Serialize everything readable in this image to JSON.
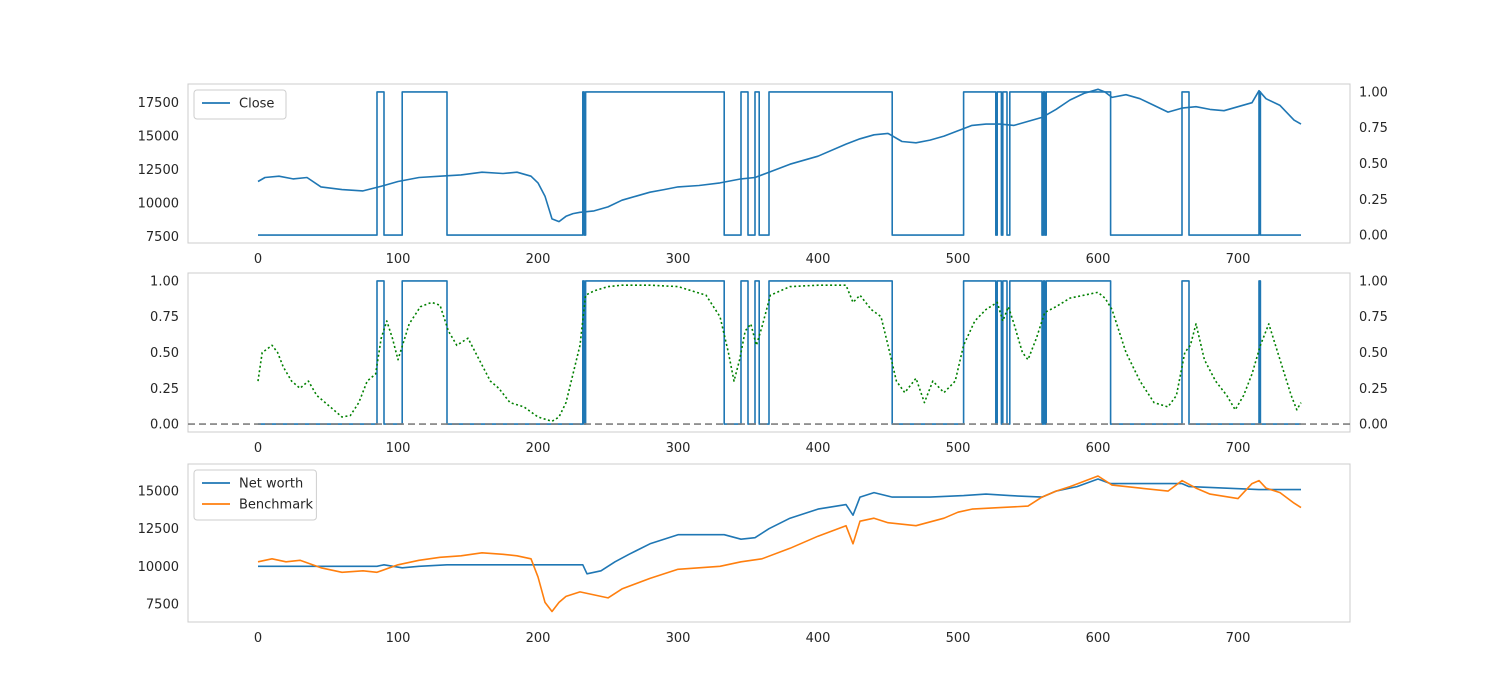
{
  "colors": {
    "close": "#1f77b4",
    "position": "#1f77b4",
    "probability": "#008000",
    "threshold": "#808080",
    "net_worth": "#1f77b4",
    "benchmark": "#ff7f0e"
  },
  "chart_data": [
    {
      "type": "line",
      "panel": "price",
      "legend": {
        "placement": "upper-left",
        "entries": [
          "Close"
        ]
      },
      "grid": false,
      "xlim": [
        -50,
        780
      ],
      "ylim": [
        7000,
        18900
      ],
      "y2lim": [
        -0.055,
        1.055
      ],
      "x_ticks": [
        "0",
        "100",
        "200",
        "300",
        "400",
        "500",
        "600",
        "700"
      ],
      "y_ticks": [
        "7500",
        "10000",
        "12500",
        "15000",
        "17500"
      ],
      "y2_ticks": [
        "0.00",
        "0.25",
        "0.50",
        "0.75",
        "1.00"
      ],
      "series": [
        {
          "name": "Close",
          "axis": "left",
          "color": "#1f77b4",
          "x": [
            0,
            5,
            15,
            25,
            35,
            45,
            60,
            75,
            90,
            100,
            115,
            130,
            145,
            160,
            175,
            185,
            195,
            200,
            205,
            210,
            215,
            220,
            225,
            230,
            240,
            250,
            260,
            270,
            280,
            290,
            300,
            315,
            330,
            345,
            355,
            365,
            380,
            400,
            420,
            430,
            440,
            450,
            460,
            470,
            480,
            490,
            500,
            510,
            520,
            530,
            540,
            550,
            560,
            570,
            580,
            590,
            600,
            605,
            610,
            620,
            630,
            640,
            650,
            660,
            670,
            680,
            690,
            700,
            710,
            715,
            720,
            730,
            740,
            745
          ],
          "y": [
            11600,
            11900,
            12000,
            11800,
            11900,
            11200,
            11000,
            10900,
            11300,
            11600,
            11900,
            12000,
            12100,
            12300,
            12200,
            12300,
            12000,
            11500,
            10500,
            8800,
            8600,
            9000,
            9200,
            9300,
            9400,
            9700,
            10200,
            10500,
            10800,
            11000,
            11200,
            11300,
            11500,
            11800,
            11900,
            12300,
            12900,
            13500,
            14400,
            14800,
            15100,
            15200,
            14600,
            14500,
            14700,
            15000,
            15400,
            15800,
            15900,
            15900,
            15800,
            16100,
            16400,
            17000,
            17700,
            18200,
            18500,
            18300,
            17900,
            18100,
            17800,
            17300,
            16800,
            17100,
            17200,
            17000,
            16900,
            17200,
            17500,
            18400,
            17800,
            17300,
            16200,
            15900
          ]
        },
        {
          "name": "position",
          "axis": "right",
          "color": "#1f77b4",
          "step": true,
          "x": [
            0,
            85,
            90,
            103,
            135,
            232,
            233,
            234,
            333,
            345,
            350,
            355,
            358,
            365,
            453,
            504,
            527,
            528,
            531,
            532,
            535,
            537,
            560,
            561,
            562,
            563,
            609,
            660,
            665,
            715,
            716,
            745
          ],
          "y": [
            0,
            1,
            0,
            1,
            0,
            1,
            0,
            1,
            0,
            1,
            0,
            1,
            0,
            1,
            0,
            1,
            0,
            1,
            0,
            1,
            0,
            1,
            0,
            1,
            0,
            1,
            0,
            1,
            0,
            1,
            0,
            0
          ]
        }
      ]
    },
    {
      "type": "line",
      "panel": "signal",
      "grid": false,
      "xlim": [
        -50,
        780
      ],
      "ylim": [
        -0.055,
        1.055
      ],
      "y2lim": [
        -0.055,
        1.055
      ],
      "x_ticks": [
        "0",
        "100",
        "200",
        "300",
        "400",
        "500",
        "600",
        "700"
      ],
      "y_ticks": [
        "0.00",
        "0.25",
        "0.50",
        "0.75",
        "1.00"
      ],
      "y2_ticks": [
        "0.00",
        "0.25",
        "0.50",
        "0.75",
        "1.00"
      ],
      "series": [
        {
          "name": "position",
          "axis": "left",
          "color": "#1f77b4",
          "step": true,
          "x": [
            0,
            85,
            90,
            103,
            135,
            232,
            233,
            234,
            333,
            345,
            350,
            355,
            358,
            365,
            453,
            504,
            527,
            528,
            531,
            532,
            535,
            537,
            560,
            561,
            562,
            563,
            609,
            660,
            665,
            715,
            716,
            745
          ],
          "y": [
            0,
            1,
            0,
            1,
            0,
            1,
            0,
            1,
            0,
            1,
            0,
            1,
            0,
            1,
            0,
            1,
            0,
            1,
            0,
            1,
            0,
            1,
            0,
            1,
            0,
            1,
            0,
            1,
            0,
            1,
            0,
            0
          ]
        },
        {
          "name": "probability",
          "axis": "right",
          "color": "#008000",
          "dash": "dotted",
          "x": [
            0,
            3,
            6,
            10,
            14,
            18,
            24,
            30,
            36,
            42,
            48,
            54,
            60,
            66,
            72,
            78,
            84,
            88,
            92,
            96,
            100,
            108,
            116,
            124,
            130,
            136,
            142,
            150,
            158,
            166,
            172,
            180,
            190,
            200,
            210,
            215,
            220,
            225,
            230,
            234,
            240,
            250,
            260,
            280,
            300,
            320,
            330,
            336,
            340,
            344,
            348,
            352,
            356,
            360,
            366,
            380,
            400,
            420,
            425,
            430,
            438,
            445,
            450,
            456,
            462,
            470,
            476,
            482,
            490,
            498,
            504,
            512,
            520,
            528,
            532,
            536,
            540,
            546,
            550,
            556,
            562,
            570,
            580,
            590,
            600,
            605,
            610,
            620,
            630,
            640,
            650,
            656,
            662,
            666,
            670,
            676,
            684,
            692,
            698,
            704,
            710,
            716,
            722,
            730,
            738,
            742,
            745
          ],
          "y": [
            0.3,
            0.5,
            0.52,
            0.55,
            0.5,
            0.4,
            0.3,
            0.25,
            0.3,
            0.2,
            0.15,
            0.1,
            0.05,
            0.06,
            0.15,
            0.3,
            0.35,
            0.6,
            0.72,
            0.6,
            0.45,
            0.7,
            0.82,
            0.85,
            0.83,
            0.65,
            0.55,
            0.6,
            0.45,
            0.3,
            0.25,
            0.15,
            0.12,
            0.05,
            0.02,
            0.05,
            0.15,
            0.35,
            0.55,
            0.9,
            0.93,
            0.96,
            0.97,
            0.97,
            0.96,
            0.9,
            0.75,
            0.5,
            0.3,
            0.45,
            0.65,
            0.7,
            0.55,
            0.68,
            0.9,
            0.96,
            0.97,
            0.97,
            0.85,
            0.9,
            0.8,
            0.75,
            0.55,
            0.3,
            0.22,
            0.32,
            0.15,
            0.3,
            0.22,
            0.3,
            0.55,
            0.72,
            0.8,
            0.85,
            0.72,
            0.82,
            0.7,
            0.5,
            0.45,
            0.6,
            0.78,
            0.82,
            0.88,
            0.9,
            0.92,
            0.88,
            0.8,
            0.5,
            0.3,
            0.15,
            0.12,
            0.2,
            0.5,
            0.55,
            0.7,
            0.45,
            0.3,
            0.2,
            0.1,
            0.2,
            0.35,
            0.55,
            0.7,
            0.45,
            0.2,
            0.1,
            0.15
          ]
        },
        {
          "name": "threshold",
          "axis": "left",
          "color": "#808080",
          "dash": "dashed",
          "horizontal": true,
          "y": [
            0,
            0
          ]
        }
      ]
    },
    {
      "type": "line",
      "panel": "performance",
      "legend": {
        "placement": "upper-left",
        "entries": [
          "Net worth",
          "Benchmark"
        ]
      },
      "grid": false,
      "xlim": [
        -50,
        780
      ],
      "ylim": [
        6300,
        16800
      ],
      "x_ticks": [
        "0",
        "100",
        "200",
        "300",
        "400",
        "500",
        "600",
        "700"
      ],
      "y_ticks": [
        "7500",
        "10000",
        "12500",
        "15000"
      ],
      "series": [
        {
          "name": "Net worth",
          "color": "#1f77b4",
          "x": [
            0,
            85,
            90,
            103,
            115,
            135,
            232,
            235,
            245,
            255,
            265,
            280,
            300,
            333,
            345,
            355,
            365,
            380,
            400,
            420,
            425,
            430,
            440,
            453,
            480,
            504,
            520,
            537,
            560,
            570,
            585,
            600,
            609,
            660,
            665,
            715,
            745
          ],
          "y": [
            10000,
            10000,
            10100,
            9900,
            10000,
            10100,
            10100,
            9500,
            9700,
            10300,
            10800,
            11500,
            12100,
            12100,
            11800,
            11900,
            12500,
            13200,
            13800,
            14100,
            13400,
            14600,
            14900,
            14600,
            14600,
            14700,
            14800,
            14700,
            14600,
            15000,
            15300,
            15800,
            15500,
            15500,
            15300,
            15100,
            15100
          ]
        },
        {
          "name": "Benchmark",
          "color": "#ff7f0e",
          "x": [
            0,
            10,
            20,
            30,
            45,
            60,
            75,
            85,
            100,
            115,
            130,
            145,
            160,
            175,
            185,
            195,
            200,
            205,
            210,
            215,
            220,
            230,
            240,
            250,
            260,
            280,
            300,
            330,
            345,
            360,
            380,
            400,
            420,
            425,
            430,
            440,
            450,
            470,
            490,
            500,
            510,
            530,
            550,
            560,
            570,
            580,
            600,
            610,
            630,
            650,
            660,
            670,
            680,
            700,
            710,
            715,
            720,
            730,
            740,
            745
          ],
          "y": [
            10300,
            10500,
            10300,
            10400,
            9900,
            9600,
            9700,
            9600,
            10100,
            10400,
            10600,
            10700,
            10900,
            10800,
            10700,
            10500,
            9300,
            7600,
            7000,
            7600,
            8000,
            8300,
            8100,
            7900,
            8500,
            9200,
            9800,
            10000,
            10300,
            10500,
            11200,
            12000,
            12700,
            11500,
            13000,
            13200,
            12900,
            12700,
            13200,
            13600,
            13800,
            13900,
            14000,
            14600,
            15000,
            15300,
            16000,
            15400,
            15200,
            15000,
            15700,
            15200,
            14800,
            14500,
            15500,
            15700,
            15200,
            14900,
            14200,
            13900
          ]
        }
      ]
    }
  ]
}
